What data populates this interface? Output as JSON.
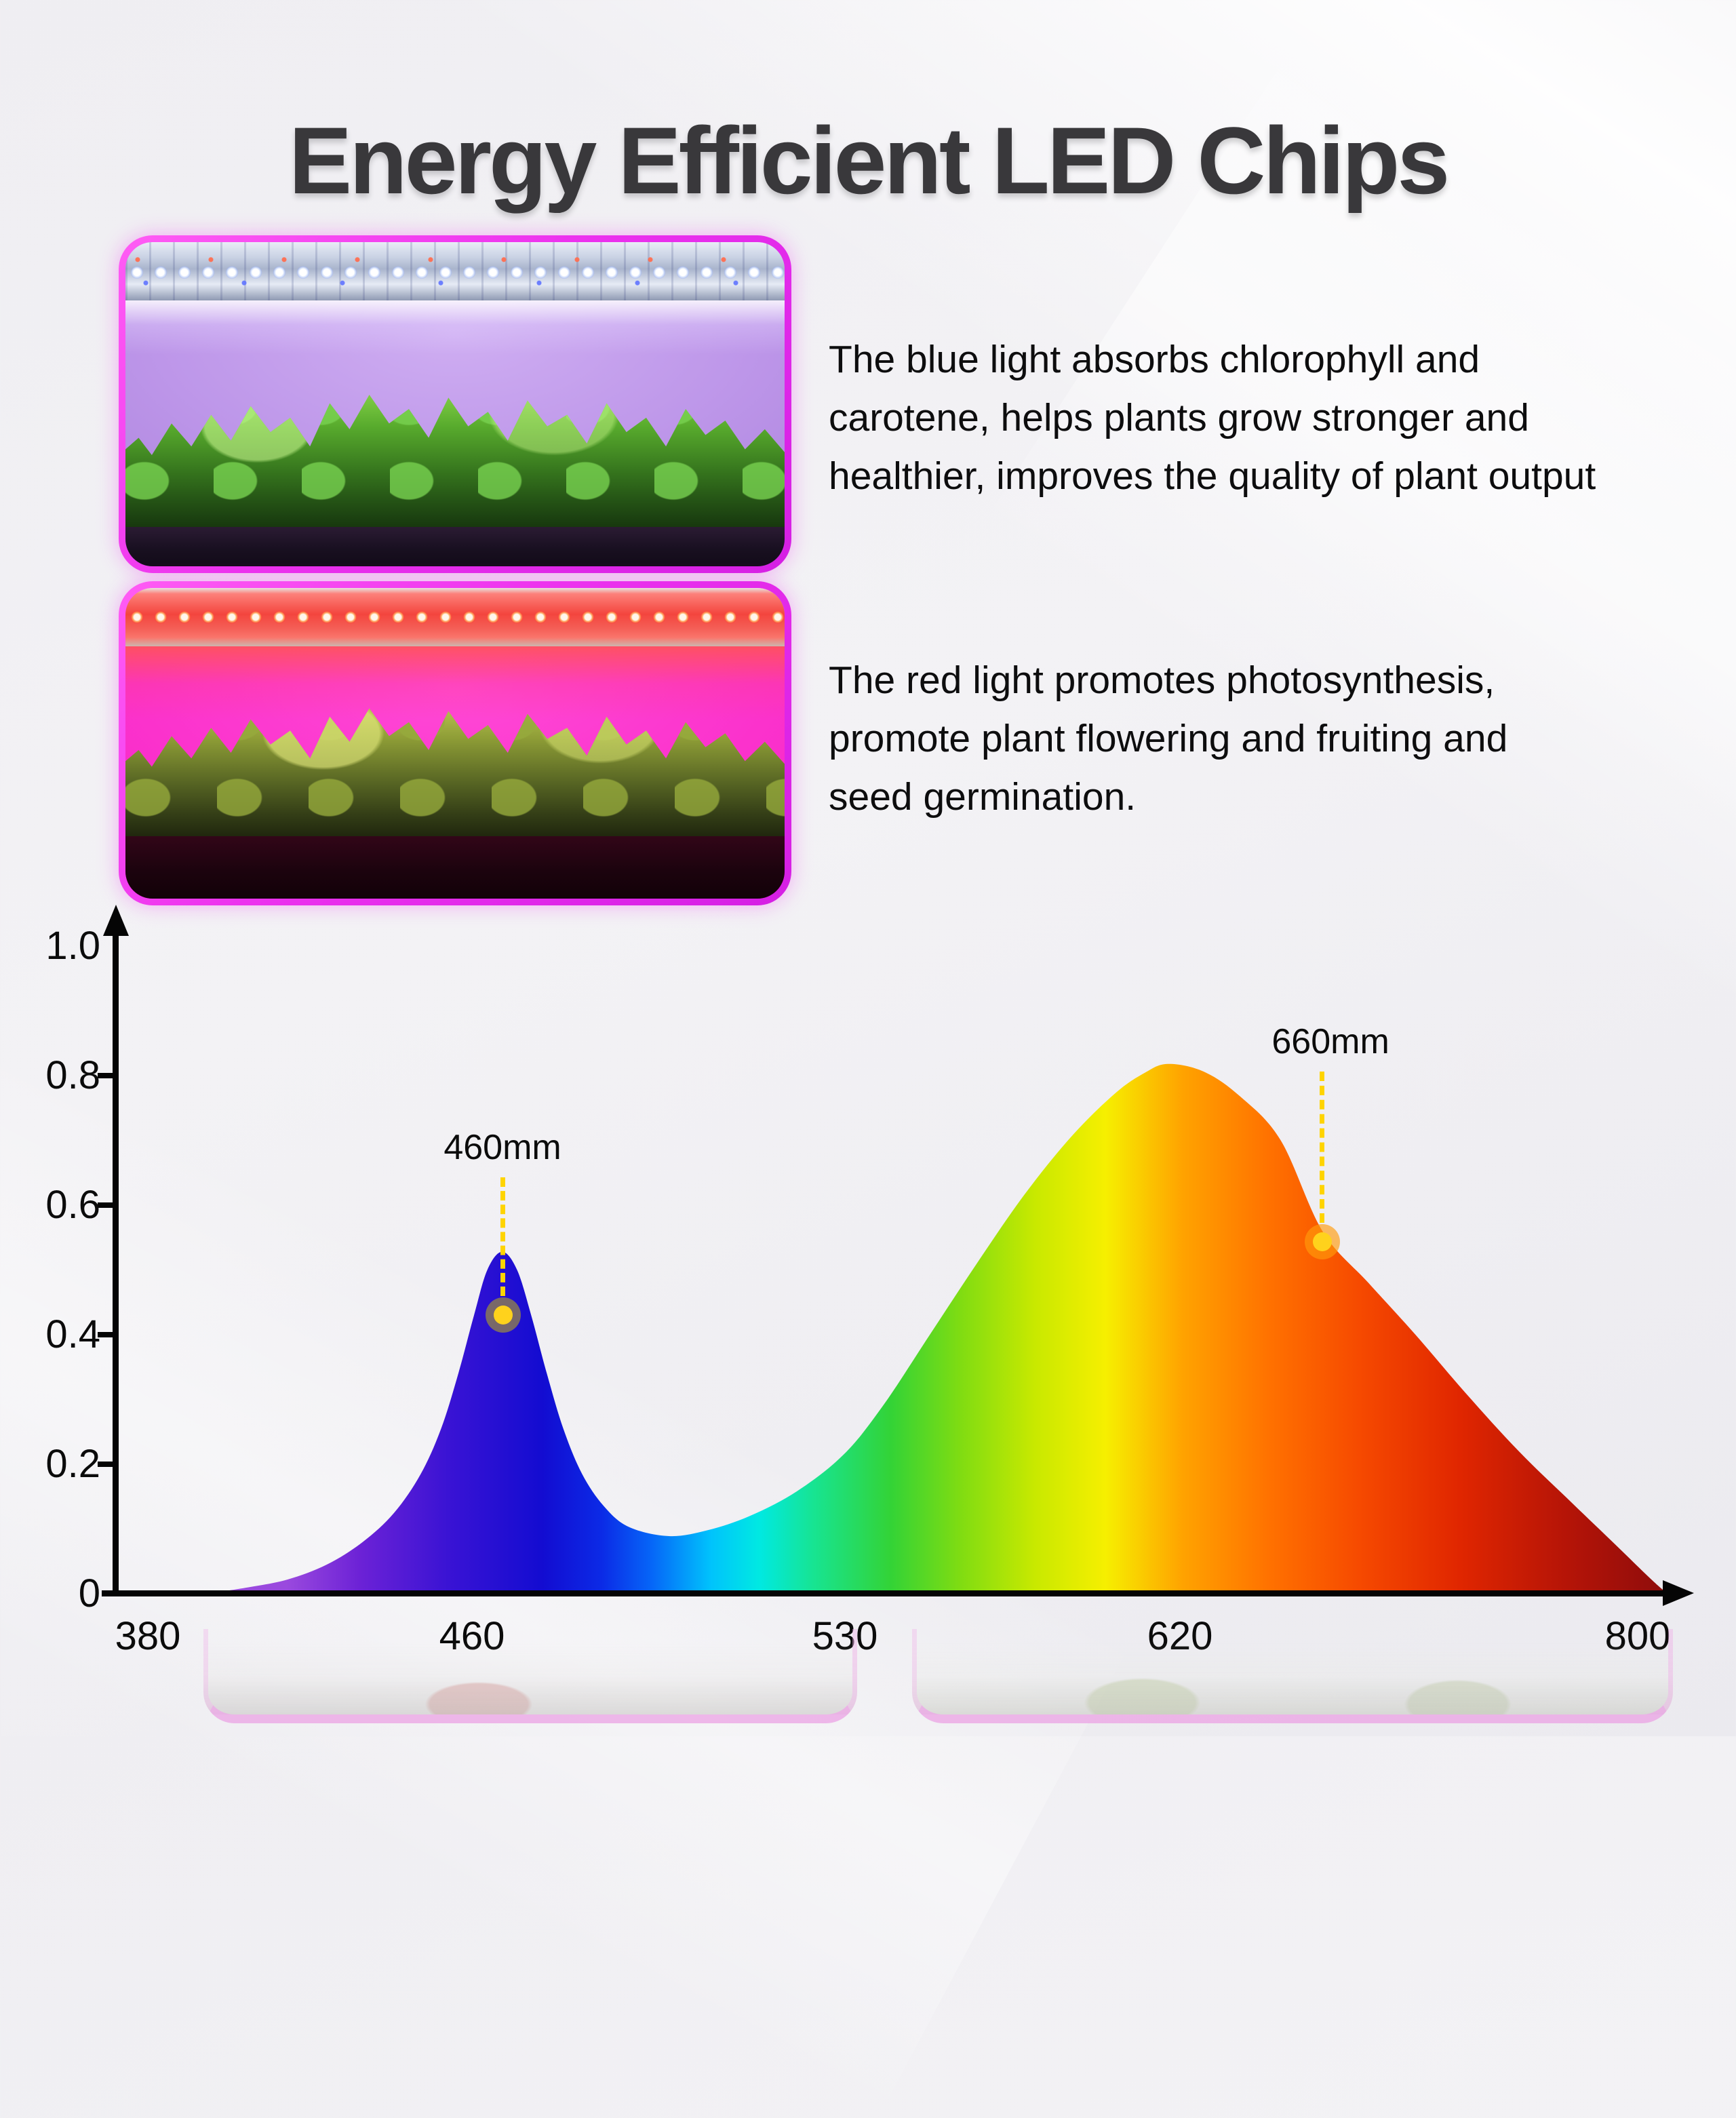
{
  "title": "Energy Efficient LED Chips",
  "features": [
    {
      "text_lines": [
        "The blue light absorbs chlorophyll and",
        "carotene, helps plants grow stronger and",
        "healthier, improves the quality of plant output"
      ]
    },
    {
      "text_lines": [
        "The red light promotes photosynthesis,",
        "promote plant flowering and fruiting and",
        "seed germination."
      ]
    }
  ],
  "colors": {
    "title": "#39383b",
    "photo_frame_magenta": "#ec32ee",
    "blue_scene_light": "#bd96e9",
    "red_scene_light": "#fa2dca",
    "marker_line_yellow": "#ffd400",
    "marker_dot_core": "#ffd21c",
    "axis_black": "#050505"
  },
  "chart_data": {
    "type": "area",
    "x_tick_labels": [
      "380",
      "460",
      "530",
      "620",
      "800"
    ],
    "x_tick_values_nm": [
      380,
      460,
      530,
      620,
      800
    ],
    "y_tick_labels": [
      "1.0",
      "0.8",
      "0.6",
      "0.4",
      "0.2",
      "0"
    ],
    "y_tick_values": [
      1.0,
      0.8,
      0.6,
      0.4,
      0.2,
      0
    ],
    "ylim": [
      0,
      1
    ],
    "grid": false,
    "legend": false,
    "peaks": [
      {
        "label": "460mm",
        "wavelength_nm": 460,
        "peak_intensity": 0.53
      },
      {
        "label": "660mm",
        "wavelength_nm": 660,
        "peak_intensity": 0.82
      }
    ],
    "markers": [
      {
        "label": "460mm",
        "dot_fx": 0.2476,
        "dot_value": 0.43,
        "label_fx": 0.2472,
        "label_value": 0.689,
        "halo_color": "rgba(150,135,70,0.75)"
      },
      {
        "label": "660mm",
        "dot_fx": 0.7706,
        "dot_value": 0.543,
        "label_fx": 0.7758,
        "label_value": 0.852,
        "halo_color": "rgba(255,155,10,0.65)"
      }
    ],
    "curve_points_fraction_intensity": [
      [
        0.058,
        0.0
      ],
      [
        0.085,
        0.01
      ],
      [
        0.11,
        0.022
      ],
      [
        0.135,
        0.045
      ],
      [
        0.158,
        0.08
      ],
      [
        0.178,
        0.125
      ],
      [
        0.195,
        0.185
      ],
      [
        0.208,
        0.255
      ],
      [
        0.219,
        0.34
      ],
      [
        0.229,
        0.43
      ],
      [
        0.2375,
        0.5
      ],
      [
        0.247,
        0.528
      ],
      [
        0.2565,
        0.5
      ],
      [
        0.2655,
        0.43
      ],
      [
        0.2755,
        0.34
      ],
      [
        0.286,
        0.255
      ],
      [
        0.298,
        0.185
      ],
      [
        0.312,
        0.135
      ],
      [
        0.328,
        0.103
      ],
      [
        0.3535,
        0.089
      ],
      [
        0.378,
        0.098
      ],
      [
        0.405,
        0.12
      ],
      [
        0.435,
        0.158
      ],
      [
        0.465,
        0.215
      ],
      [
        0.49,
        0.29
      ],
      [
        0.52,
        0.4
      ],
      [
        0.55,
        0.51
      ],
      [
        0.58,
        0.615
      ],
      [
        0.61,
        0.705
      ],
      [
        0.638,
        0.772
      ],
      [
        0.657,
        0.804
      ],
      [
        0.672,
        0.818
      ],
      [
        0.695,
        0.806
      ],
      [
        0.718,
        0.768
      ],
      [
        0.744,
        0.7
      ],
      [
        0.7706,
        0.56
      ],
      [
        0.8,
        0.48
      ],
      [
        0.83,
        0.4
      ],
      [
        0.862,
        0.31
      ],
      [
        0.896,
        0.22
      ],
      [
        0.93,
        0.14
      ],
      [
        0.958,
        0.075
      ],
      [
        0.978,
        0.028
      ],
      [
        0.988,
        0.006
      ],
      [
        0.992,
        0.0
      ]
    ],
    "spectrum_gradient": [
      [
        "0.055",
        "#9a49de"
      ],
      [
        "0.105",
        "#6c22d6"
      ],
      [
        "0.165",
        "#3a13d4"
      ],
      [
        "0.23",
        "#130cd1"
      ],
      [
        "0.27",
        "#0b2ae6"
      ],
      [
        "0.305",
        "#0667f8"
      ],
      [
        "0.345",
        "#00c3fc"
      ],
      [
        "0.378",
        "#00e9e2"
      ],
      [
        "0.415",
        "#17e492"
      ],
      [
        "0.468",
        "#33d336"
      ],
      [
        "0.515",
        "#7fdc12"
      ],
      [
        "0.567",
        "#c9e900"
      ],
      [
        "0.615",
        "#f6ef00"
      ],
      [
        "0.667",
        "#ffa300"
      ],
      [
        "0.727",
        "#ff7100"
      ],
      [
        "0.788",
        "#f64a00"
      ],
      [
        "0.857",
        "#e02600"
      ],
      [
        "0.93",
        "#b51407"
      ],
      [
        "1",
        "#8d0c0c"
      ]
    ]
  }
}
